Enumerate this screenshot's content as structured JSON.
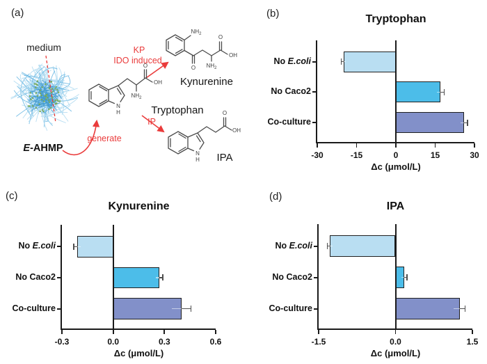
{
  "figure": {
    "background": "#ffffff",
    "panel_labels": {
      "a": "(a)",
      "b": "(b)",
      "c": "(c)",
      "d": "(d)"
    }
  },
  "panel_a": {
    "medium_label": "medium",
    "ball_label_em": "E",
    "ball_label_rest": "-AHMP",
    "generate_label": "generate",
    "kp_line1": "KP",
    "kp_line2": "IDO induced",
    "ip_label": "IP",
    "tryptophan_label": "Tryptophan",
    "kynurenine_label": "Kynurenine",
    "ipa_label": "IPA",
    "atoms": {
      "o": "O",
      "oh": "OH",
      "nh": "NH",
      "sub2": "2",
      "n": "N",
      "h": "H"
    },
    "colors": {
      "arrow_red": "#ea3b3b",
      "fiber_light": "#aad8f0",
      "fiber_mid": "#62b4e2",
      "fiber_core": "#3f98cd",
      "dot_green": "#79a953",
      "bond": "#4a4a4a"
    }
  },
  "chart_data": [
    {
      "id": "b",
      "type": "bar",
      "orientation": "horizontal",
      "title": "Tryptophan",
      "xlabel": "Δc (μmol/L)",
      "categories": [
        "No E.coli",
        "No Caco2",
        "Co-culture"
      ],
      "categories_rich": [
        {
          "pre": "No ",
          "em": "E.coli"
        },
        {
          "pre": "No Caco2",
          "em": ""
        },
        {
          "pre": "Co-culture",
          "em": ""
        }
      ],
      "values": [
        -20,
        17,
        26
      ],
      "errors": [
        0.8,
        1.4,
        1.4
      ],
      "bar_colors": [
        "#b9def2",
        "#4cbde9",
        "#8290c9"
      ],
      "xlim": [
        -30,
        30
      ],
      "xticks": [
        -30,
        -15,
        0,
        15,
        30
      ],
      "xtick_labels": [
        "-30",
        "-15",
        "0",
        "15",
        "30"
      ],
      "axis_color": "#1a1a1a",
      "grid": false,
      "legend": "none"
    },
    {
      "id": "c",
      "type": "bar",
      "orientation": "horizontal",
      "title": "Kynurenine",
      "xlabel": "Δc (μmol/L)",
      "categories": [
        "No E.coli",
        "No Caco2",
        "Co-culture"
      ],
      "categories_rich": [
        {
          "pre": "No ",
          "em": "E.coli"
        },
        {
          "pre": "No Caco2",
          "em": ""
        },
        {
          "pre": "Co-culture",
          "em": ""
        }
      ],
      "values": [
        -0.21,
        0.27,
        0.4
      ],
      "errors": [
        0.02,
        0.02,
        0.055
      ],
      "bar_colors": [
        "#b9def2",
        "#4cbde9",
        "#8290c9"
      ],
      "xlim": [
        -0.3,
        0.6
      ],
      "xticks": [
        -0.3,
        0,
        0.3,
        0.6
      ],
      "xtick_labels": [
        "-0.3",
        "0.0",
        "0.3",
        "0.6"
      ],
      "axis_color": "#1a1a1a",
      "grid": false,
      "legend": "none"
    },
    {
      "id": "d",
      "type": "bar",
      "orientation": "horizontal",
      "title": "IPA",
      "xlabel": "Δc (μmol/L)",
      "categories": [
        "No E.coli",
        "No Caco2",
        "Co-culture"
      ],
      "categories_rich": [
        {
          "pre": "No ",
          "em": "E.coli"
        },
        {
          "pre": "No Caco2",
          "em": ""
        },
        {
          "pre": "Co-culture",
          "em": ""
        }
      ],
      "values": [
        -1.28,
        0.17,
        1.25
      ],
      "errors": [
        0.05,
        0.05,
        0.11
      ],
      "bar_colors": [
        "#b9def2",
        "#4cbde9",
        "#8290c9"
      ],
      "xlim": [
        -1.5,
        1.5
      ],
      "xticks": [
        -1.5,
        0,
        1.5
      ],
      "xtick_labels": [
        "-1.5",
        "0.0",
        "1.5"
      ],
      "axis_color": "#1a1a1a",
      "grid": false,
      "legend": "none"
    }
  ]
}
